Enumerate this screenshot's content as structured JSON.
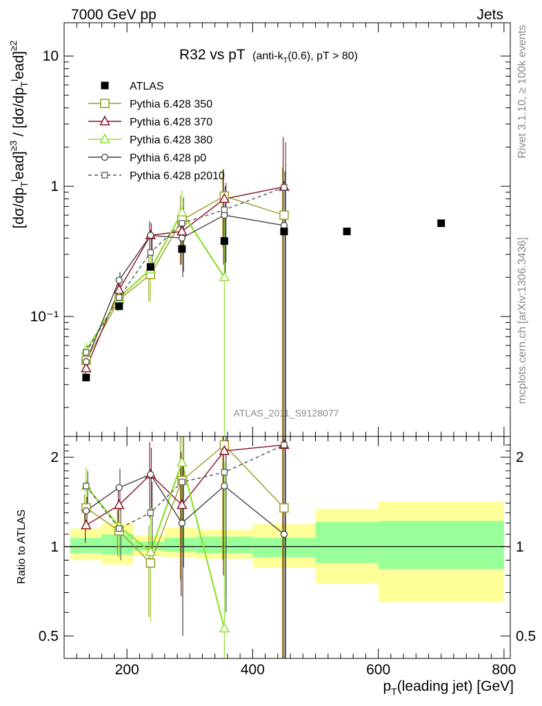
{
  "header": {
    "left": "7000 GeV pp",
    "right": "Jets",
    "title_main": "R32 vs pT",
    "title_sub_a": "(anti-k",
    "title_sub_b": "T",
    "title_sub_c": "(0.6), pT > 80)"
  },
  "side_labels": {
    "rivet": "Rivet 3.1.10, ≥ 100k events",
    "mcplots": "mcplots.cern.ch [arXiv:1306.3436]"
  },
  "analysis_id": "ATLAS_2011_S9128077",
  "colors": {
    "atlas": "#000000",
    "p350": "#9a9a24",
    "p370": "#8b0e21",
    "p380": "#8ee02c",
    "p0": "#404040",
    "p2010": "#505050",
    "band_outer": "#ffff99",
    "band_inner": "#99ff99"
  },
  "chart_data": [
    {
      "type": "scatter",
      "title": "R32 vs pT (anti-kT(0.6), pT > 80)",
      "ylabel": "[dσ/dpTlead]≥3 / [dσ/dpTlead]≥2",
      "xlim": [
        100,
        810
      ],
      "ylim": [
        0.012,
        18
      ],
      "yscale": "log",
      "y_tick_labels": [
        "10⁻¹",
        "1",
        "10"
      ],
      "legend_position": "top-left",
      "data": {
        "name": "ATLAS",
        "x": [
          135,
          187.5,
          237.5,
          287.5,
          355,
          450,
          550,
          700
        ],
        "y": [
          0.034,
          0.12,
          0.24,
          0.33,
          0.38,
          0.45,
          0.45,
          0.52
        ]
      },
      "series": [
        {
          "name": "Pythia 6.428 350",
          "style": "open-square",
          "dashed": false,
          "x": [
            135,
            187.5,
            237.5,
            287.5,
            355,
            450
          ],
          "y": [
            0.046,
            0.135,
            0.21,
            0.55,
            0.84,
            0.6
          ],
          "err": [
            0.006,
            0.025,
            0.08,
            0.3,
            0.5,
            0.8
          ]
        },
        {
          "name": "Pythia 6.428 370",
          "style": "open-triangle",
          "dashed": false,
          "x": [
            135,
            187.5,
            237.5,
            287.5,
            355,
            450
          ],
          "y": [
            0.04,
            0.16,
            0.42,
            0.45,
            0.8,
            0.99
          ],
          "err": [
            0.005,
            0.03,
            0.12,
            0.2,
            0.55,
            1.4
          ]
        },
        {
          "name": "Pythia 6.428 380",
          "style": "open-triangle",
          "dashed": false,
          "x": [
            135,
            187.5,
            237.5,
            287.5,
            355
          ],
          "y": [
            0.055,
            0.14,
            0.23,
            0.63,
            0.2
          ],
          "err": [
            0.008,
            0.03,
            0.1,
            0.3,
            0.5
          ]
        },
        {
          "name": "Pythia 6.428 p0",
          "style": "open-circle",
          "dashed": false,
          "x": [
            135,
            187.5,
            237.5,
            287.5,
            355,
            450
          ],
          "y": [
            0.045,
            0.19,
            0.42,
            0.4,
            0.6,
            0.5
          ],
          "err": [
            0.006,
            0.03,
            0.1,
            0.2,
            0.4,
            0.8
          ]
        },
        {
          "name": "Pythia 6.428 p2010",
          "style": "open-square-small",
          "dashed": true,
          "x": [
            135,
            187.5,
            237.5,
            287.5,
            355,
            450
          ],
          "y": [
            0.053,
            0.14,
            0.31,
            0.52,
            0.66,
            0.98
          ],
          "err": [
            0.007,
            0.025,
            0.08,
            0.3,
            0.4,
            1.2
          ]
        }
      ]
    },
    {
      "type": "scatter",
      "ylabel": "Ratio to ATLAS",
      "xlabel": "pT(leading jet) [GeV]",
      "xlim": [
        100,
        810
      ],
      "ylim": [
        0.42,
        2.35
      ],
      "yscale": "log",
      "x_ticks": [
        200,
        400,
        600,
        800
      ],
      "y_ticks": [
        0.5,
        1,
        2
      ],
      "reference": 1,
      "band_edges": [
        110,
        160,
        210,
        260,
        310,
        400,
        500,
        600,
        800
      ],
      "band_inner": [
        [
          0.95,
          1.07
        ],
        [
          0.94,
          1.1
        ],
        [
          0.97,
          1.04
        ],
        [
          0.96,
          1.07
        ],
        [
          0.95,
          1.08
        ],
        [
          0.92,
          1.07
        ],
        [
          0.88,
          1.21
        ],
        [
          0.84,
          1.22
        ]
      ],
      "band_outer": [
        [
          0.9,
          1.15
        ],
        [
          0.87,
          1.2
        ],
        [
          0.93,
          1.09
        ],
        [
          0.92,
          1.16
        ],
        [
          0.91,
          1.14
        ],
        [
          0.85,
          1.19
        ],
        [
          0.75,
          1.34
        ],
        [
          0.65,
          1.42
        ]
      ],
      "series": [
        {
          "name": "Pythia 6.428 350",
          "x": [
            135,
            187.5,
            237.5,
            287.5,
            355,
            450
          ],
          "y": [
            1.35,
            1.13,
            0.88,
            1.67,
            2.2,
            1.35
          ],
          "err": [
            0.15,
            0.2,
            0.3,
            0.9,
            1.3,
            1.5
          ]
        },
        {
          "name": "Pythia 6.428 370",
          "x": [
            135,
            187.5,
            237.5,
            287.5,
            355,
            450
          ],
          "y": [
            1.18,
            1.38,
            1.75,
            1.38,
            2.1,
            2.2
          ],
          "err": [
            0.15,
            0.2,
            0.5,
            0.7,
            1.3,
            3.0
          ]
        },
        {
          "name": "Pythia 6.428 380",
          "x": [
            135,
            187.5,
            237.5,
            287.5,
            355
          ],
          "y": [
            1.6,
            1.17,
            0.96,
            1.92,
            0.53
          ],
          "err": [
            0.25,
            0.25,
            0.4,
            0.9,
            1.4
          ]
        },
        {
          "name": "Pythia 6.428 p0",
          "x": [
            135,
            187.5,
            237.5,
            287.5,
            450
          ],
          "y": [
            1.32,
            1.58,
            1.75,
            1.2,
            1.1
          ],
          "err": [
            0.15,
            0.25,
            0.4,
            0.7,
            1.8
          ]
        },
        {
          "name": "Pythia 6.428 p0 (355)",
          "x": [
            355
          ],
          "y": [
            1.6
          ],
          "err": [
            1.0
          ]
        },
        {
          "name": "Pythia 6.428 p2010",
          "x": [
            135,
            187.5,
            237.5,
            287.5,
            355,
            450
          ],
          "y": [
            1.6,
            1.15,
            1.3,
            1.65,
            1.78,
            2.2
          ],
          "err": [
            0.2,
            0.25,
            0.35,
            0.8,
            1.1,
            2.8
          ]
        }
      ]
    }
  ]
}
